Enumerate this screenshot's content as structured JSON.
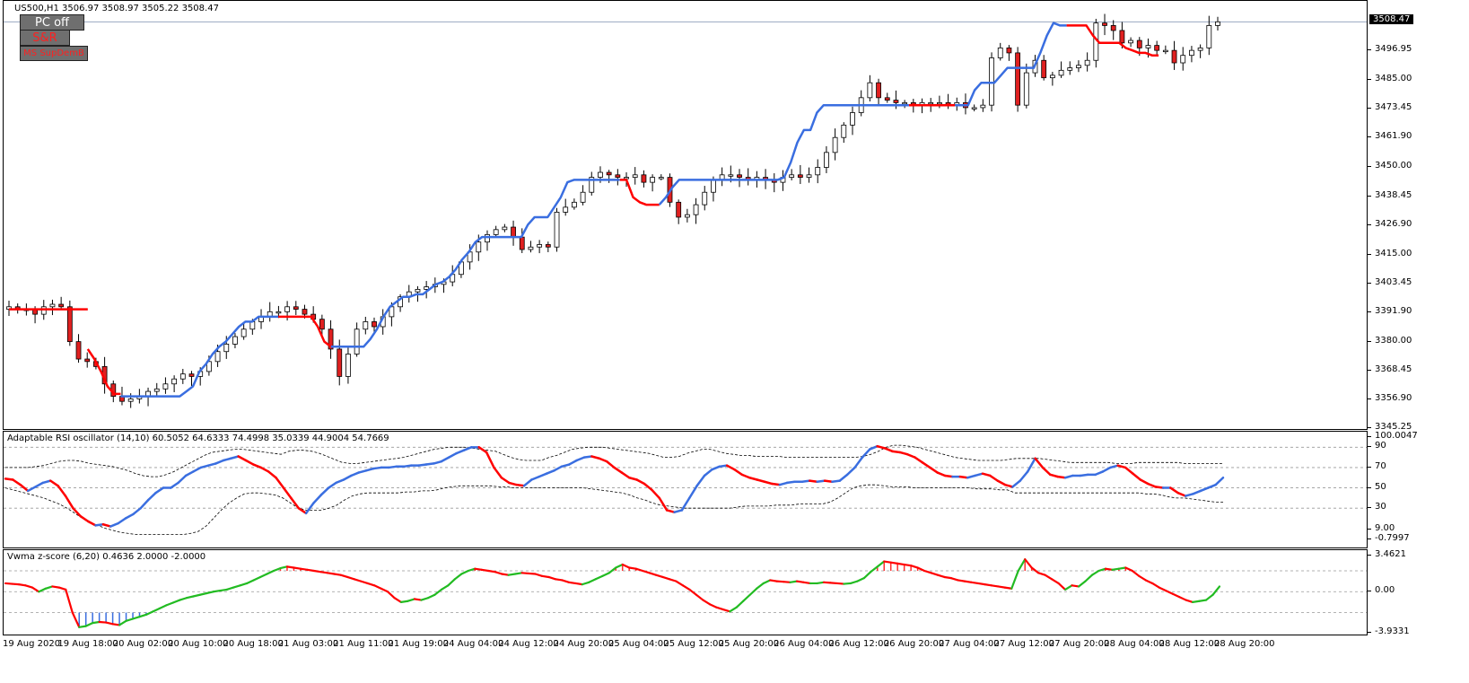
{
  "symbol_header": "US500,H1  3506.97 3508.97 3505.22 3508.47",
  "buttons": [
    {
      "label": "PC off"
    },
    {
      "label": "S&R"
    },
    {
      "label": "MS SupDemB"
    }
  ],
  "indicators": {
    "rsi_title": "Adaptable RSI oscillator (14,10) 60.5052 64.6333 74.4998 35.0339 44.9004 54.7669",
    "zscore_title": "Vwma z-score (6,20) 0.4636 2.0000 -2.0000"
  },
  "colors": {
    "bull": "#ffffff",
    "bear": "#e02020",
    "wick": "#000000",
    "trail_up": "#3a6ee0",
    "trail_down": "#ff0000",
    "osc_up": "#3a6ee0",
    "osc_down": "#ff0000",
    "z_up": "#22bb22",
    "z_down": "#ff0000"
  },
  "current_price_label": "3508.47",
  "chart_data": [
    {
      "type": "candlestick",
      "symbol": "US500",
      "timeframe": "H1",
      "last_ohlc": {
        "open": 3506.97,
        "high": 3508.97,
        "low": 3505.22,
        "close": 3508.47
      },
      "current_price": 3508.47,
      "ylim": [
        3345.25,
        3514.0
      ],
      "y_ticks": [
        "3508.47",
        "3496.95",
        "3485.00",
        "3473.45",
        "3461.90",
        "3450.00",
        "3438.45",
        "3426.90",
        "3415.00",
        "3403.45",
        "3391.90",
        "3380.00",
        "3368.45",
        "3356.90",
        "3345.25"
      ],
      "x_ticks": [
        "19 Aug 2020",
        "19 Aug 18:00",
        "20 Aug 02:00",
        "20 Aug 10:00",
        "20 Aug 18:00",
        "21 Aug 03:00",
        "21 Aug 11:00",
        "21 Aug 19:00",
        "24 Aug 04:00",
        "24 Aug 12:00",
        "24 Aug 20:00",
        "25 Aug 04:00",
        "25 Aug 12:00",
        "25 Aug 20:00",
        "26 Aug 04:00",
        "26 Aug 12:00",
        "26 Aug 20:00",
        "27 Aug 04:00",
        "27 Aug 12:00",
        "27 Aug 20:00",
        "28 Aug 04:00",
        "28 Aug 12:00",
        "28 Aug 20:00"
      ],
      "close_path": [
        3394,
        3393,
        3393,
        3391,
        3394,
        3395,
        3394,
        3380,
        3373,
        3372,
        3370,
        3363,
        3358,
        3356,
        3357,
        3358,
        3360,
        3361,
        3363,
        3365,
        3367,
        3366,
        3368,
        3372,
        3376,
        3379,
        3382,
        3385,
        3388,
        3390,
        3392,
        3392,
        3394,
        3393,
        3391,
        3389,
        3385,
        3377,
        3366,
        3375,
        3385,
        3388,
        3386,
        3390,
        3394,
        3398,
        3400,
        3401,
        3402,
        3403,
        3404,
        3407,
        3412,
        3416,
        3420,
        3423,
        3425,
        3426,
        3422,
        3417,
        3418,
        3419,
        3418,
        3432,
        3434,
        3436,
        3440,
        3446,
        3448,
        3447,
        3446,
        3446,
        3447,
        3444,
        3446,
        3446,
        3436,
        3430,
        3431,
        3435,
        3440,
        3445,
        3447,
        3447,
        3446,
        3445,
        3446,
        3445,
        3444,
        3446,
        3447,
        3446,
        3447,
        3450,
        3456,
        3462,
        3467,
        3472,
        3478,
        3484,
        3478,
        3477,
        3476,
        3476,
        3475,
        3476,
        3476,
        3476,
        3475,
        3476,
        3474,
        3474,
        3475,
        3494,
        3498,
        3496,
        3475,
        3488,
        3493,
        3486,
        3487,
        3489,
        3490,
        3491,
        3493,
        3508,
        3507,
        3505,
        3500,
        3501,
        3498,
        3499,
        3497,
        3497,
        3492,
        3495,
        3497,
        3498,
        3507,
        3508.47
      ],
      "trailing_stop": [
        {
          "trend": "down",
          "values": [
            3393,
            3393,
            3393,
            3393,
            3393,
            3393,
            3393,
            3393,
            3393,
            3393,
            3393,
            3393,
            3393
          ]
        },
        {
          "trend": "down",
          "values": [
            3377,
            3373,
            3368,
            3362,
            3359,
            3359
          ]
        },
        {
          "trend": "up",
          "values": [
            3358,
            3358,
            3358,
            3358,
            3358,
            3358,
            3358,
            3358,
            3358,
            3358,
            3360,
            3362,
            3368,
            3371,
            3375,
            3378,
            3380,
            3383,
            3386,
            3388,
            3388,
            3390,
            3390,
            3390,
            3390
          ]
        },
        {
          "trend": "down",
          "values": [
            3390,
            3390,
            3390,
            3390,
            3390,
            3390,
            3386,
            3380,
            3378
          ]
        },
        {
          "trend": "up",
          "values": [
            3378,
            3378,
            3378,
            3378,
            3378,
            3378,
            3381,
            3385,
            3390,
            3394,
            3396,
            3398,
            3398,
            3399,
            3399,
            3401,
            3403,
            3404,
            3406,
            3409,
            3413,
            3416,
            3420,
            3422,
            3422,
            3422,
            3422,
            3422,
            3422,
            3422,
            3427,
            3430,
            3430,
            3430,
            3434,
            3438,
            3444,
            3445,
            3445,
            3445,
            3445,
            3445,
            3445,
            3445,
            3445
          ]
        },
        {
          "trend": "down",
          "values": [
            3445,
            3445,
            3438,
            3436,
            3435,
            3435,
            3435
          ]
        },
        {
          "trend": "up",
          "values": [
            3435,
            3438,
            3442,
            3445,
            3445,
            3445,
            3445,
            3445,
            3445,
            3445,
            3445,
            3445,
            3445,
            3445,
            3445,
            3445,
            3445,
            3445,
            3445,
            3446,
            3452,
            3460,
            3465,
            3465,
            3472,
            3475,
            3475,
            3475,
            3475,
            3475,
            3475,
            3475,
            3475,
            3475,
            3475,
            3475,
            3475,
            3475,
            3475
          ]
        },
        {
          "trend": "down",
          "values": [
            3475,
            3475,
            3475,
            3475,
            3475,
            3475,
            3475,
            3475
          ]
        },
        {
          "trend": "up",
          "values": [
            3475,
            3475,
            3475,
            3481,
            3484,
            3484,
            3484,
            3487,
            3490,
            3490,
            3490,
            3490,
            3490,
            3496,
            3503,
            3508,
            3507,
            3507
          ]
        },
        {
          "trend": "down",
          "values": [
            3507,
            3507,
            3507,
            3507,
            3503,
            3500,
            3500,
            3500,
            3500,
            3498,
            3497,
            3496,
            3496,
            3495,
            3495
          ]
        }
      ]
    },
    {
      "type": "line",
      "title": "Adaptable RSI oscillator (14,10) 60.5052 64.6333 74.4998 35.0339 44.9004 54.7669",
      "ylim": [
        -0.7997,
        100.0047
      ],
      "y_ticks": [
        "100.0047",
        "90",
        "70",
        "50",
        "30",
        "9.00",
        "-0.7997"
      ],
      "levels": [
        30,
        50,
        70,
        90
      ],
      "rsi": [
        59,
        58,
        53,
        47,
        51,
        55,
        57,
        52,
        42,
        30,
        22,
        17,
        13,
        14,
        12,
        15,
        20,
        24,
        30,
        38,
        45,
        50,
        50,
        55,
        62,
        66,
        70,
        72,
        74,
        77,
        79,
        81,
        77,
        73,
        70,
        66,
        60,
        50,
        40,
        30,
        25,
        35,
        43,
        50,
        55,
        58,
        62,
        65,
        67,
        69,
        70,
        70,
        71,
        71,
        72,
        72,
        73,
        74,
        76,
        80,
        84,
        87,
        90,
        90,
        85,
        70,
        60,
        55,
        53,
        52,
        58,
        61,
        64,
        67,
        71,
        73,
        77,
        80,
        81,
        79,
        76,
        70,
        65,
        60,
        58,
        54,
        48,
        40,
        28,
        26,
        28,
        40,
        52,
        62,
        68,
        71,
        72,
        68,
        63,
        60,
        58,
        56,
        54,
        53,
        55,
        56,
        56,
        57,
        56,
        57,
        56,
        57,
        63,
        70,
        80,
        88,
        91,
        89,
        86,
        85,
        83,
        80,
        75,
        70,
        65,
        62,
        61,
        61,
        60,
        62,
        64,
        62,
        57,
        53,
        51,
        57,
        66,
        79,
        70,
        63,
        61,
        60,
        62,
        62,
        63,
        63,
        66,
        70,
        72,
        70,
        64,
        58,
        54,
        51,
        50,
        50,
        45,
        42,
        44,
        47,
        50,
        53,
        60
      ],
      "upper_band": [
        70,
        70,
        70,
        70,
        71,
        72,
        74,
        76,
        77,
        77,
        76,
        74,
        73,
        72,
        71,
        69,
        67,
        64,
        62,
        61,
        61,
        63,
        66,
        70,
        74,
        78,
        82,
        85,
        86,
        87,
        88,
        88,
        87,
        86,
        85,
        84,
        83,
        86,
        87,
        87,
        86,
        84,
        81,
        78,
        75,
        74,
        74,
        75,
        76,
        77,
        78,
        79,
        80,
        82,
        84,
        86,
        88,
        89,
        90,
        90,
        90,
        89,
        88,
        87,
        86,
        83,
        80,
        78,
        77,
        77,
        77,
        80,
        82,
        85,
        88,
        89,
        90,
        90,
        90,
        89,
        88,
        87,
        86,
        85,
        84,
        82,
        80,
        80,
        81,
        84,
        86,
        88,
        88,
        86,
        84,
        83,
        82,
        82,
        81,
        81,
        81,
        81,
        80,
        80,
        80,
        80,
        80,
        80,
        80,
        80,
        80,
        80,
        81,
        83,
        86,
        90,
        92,
        92,
        91,
        90,
        88,
        86,
        84,
        82,
        80,
        79,
        78,
        77,
        77,
        77,
        77,
        78,
        79,
        79,
        79,
        79,
        78,
        77,
        76,
        75,
        75,
        75,
        75,
        75,
        75,
        74,
        74,
        74,
        75,
        75,
        75,
        75,
        75,
        75,
        74,
        74,
        74,
        74,
        74,
        74
      ],
      "lower_band": [
        50,
        48,
        46,
        44,
        42,
        40,
        37,
        34,
        30,
        25,
        20,
        15,
        13,
        10,
        8,
        6,
        5,
        4,
        4,
        4,
        4,
        4,
        4,
        4,
        5,
        7,
        12,
        20,
        28,
        35,
        40,
        44,
        45,
        45,
        44,
        43,
        40,
        35,
        30,
        28,
        28,
        28,
        30,
        33,
        38,
        42,
        44,
        45,
        45,
        45,
        45,
        45,
        46,
        46,
        47,
        47,
        48,
        50,
        51,
        52,
        52,
        52,
        52,
        52,
        51,
        51,
        50,
        50,
        50,
        50,
        50,
        50,
        50,
        50,
        50,
        50,
        49,
        48,
        47,
        46,
        45,
        43,
        40,
        38,
        35,
        33,
        32,
        31,
        30,
        30,
        30,
        30,
        30,
        30,
        30,
        31,
        32,
        32,
        32,
        32,
        33,
        33,
        33,
        34,
        34,
        34,
        34,
        36,
        40,
        45,
        50,
        52,
        53,
        53,
        52,
        51,
        51,
        51,
        50,
        50,
        50,
        50,
        50,
        50,
        50,
        50,
        49,
        49,
        49,
        48,
        48,
        45,
        45,
        45,
        45,
        45,
        45,
        45,
        45,
        45,
        45,
        45,
        45,
        45,
        45,
        45,
        45,
        45,
        44,
        44,
        43,
        41,
        40,
        40,
        39,
        38,
        37,
        36,
        36
      ]
    },
    {
      "type": "line",
      "title": "Vwma z-score (6,20) 0.4636 2.0000 -2.0000",
      "ylim": [
        -3.9331,
        3.4621
      ],
      "y_ticks": [
        "3.4621",
        "0.00",
        "-3.9331"
      ],
      "levels": [
        2,
        0,
        -2
      ],
      "z": [
        0.8,
        0.75,
        0.7,
        0.6,
        0.4,
        0.0,
        0.3,
        0.5,
        0.4,
        0.2,
        -2.0,
        -3.4,
        -3.3,
        -3.0,
        -2.9,
        -2.95,
        -3.1,
        -3.2,
        -2.8,
        -2.6,
        -2.4,
        -2.2,
        -1.9,
        -1.6,
        -1.3,
        -1.05,
        -0.8,
        -0.6,
        -0.45,
        -0.3,
        -0.15,
        0.0,
        0.1,
        0.2,
        0.4,
        0.6,
        0.8,
        1.1,
        1.4,
        1.7,
        2.0,
        2.25,
        2.4,
        2.3,
        2.2,
        2.1,
        2.0,
        1.9,
        1.8,
        1.7,
        1.6,
        1.4,
        1.2,
        1.0,
        0.8,
        0.6,
        0.3,
        0.0,
        -0.6,
        -1.0,
        -0.9,
        -0.7,
        -0.8,
        -0.6,
        -0.3,
        0.2,
        0.6,
        1.2,
        1.7,
        2.0,
        2.2,
        2.1,
        2.0,
        1.9,
        1.7,
        1.6,
        1.7,
        1.8,
        1.75,
        1.7,
        1.5,
        1.4,
        1.2,
        1.1,
        0.9,
        0.8,
        0.7,
        0.9,
        1.2,
        1.5,
        1.8,
        2.3,
        2.6,
        2.3,
        2.2,
        2.0,
        1.8,
        1.6,
        1.4,
        1.2,
        1.0,
        0.6,
        0.2,
        -0.3,
        -0.8,
        -1.2,
        -1.5,
        -1.7,
        -1.9,
        -1.5,
        -0.9,
        -0.3,
        0.3,
        0.8,
        1.1,
        1.0,
        0.95,
        0.9,
        1.0,
        0.9,
        0.8,
        0.8,
        0.9,
        0.85,
        0.8,
        0.75,
        0.8,
        1.0,
        1.3,
        1.9,
        2.4,
        2.9,
        2.8,
        2.7,
        2.6,
        2.5,
        2.3,
        2.0,
        1.8,
        1.6,
        1.4,
        1.3,
        1.1,
        1.0,
        0.9,
        0.8,
        0.7,
        0.6,
        0.5,
        0.4,
        0.3,
        2.0,
        3.1,
        2.3,
        1.8,
        1.6,
        1.2,
        0.8,
        0.2,
        0.6,
        0.5,
        1.0,
        1.6,
        2.0,
        2.2,
        2.1,
        2.2,
        2.3,
        2.0,
        1.5,
        1.1,
        0.8,
        0.4,
        0.1,
        -0.2,
        -0.5,
        -0.8,
        -1.0,
        -0.9,
        -0.8,
        -0.3,
        0.5
      ]
    }
  ]
}
